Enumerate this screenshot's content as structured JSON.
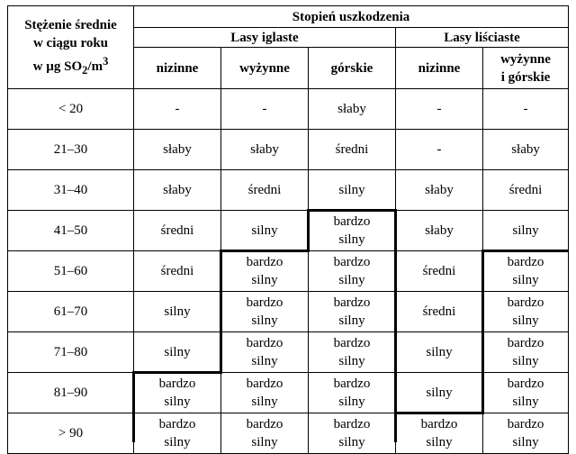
{
  "header": {
    "stub_lines": [
      "Stężenie średnie",
      "w ciągu roku",
      "w µg SO",
      "2",
      "/m",
      "3"
    ],
    "group_title": "Stopień uszkodzenia",
    "subgroups": [
      "Lasy iglaste",
      "Lasy liściaste"
    ],
    "columns": [
      "nizinne",
      "wyżynne",
      "górskie",
      "nizinne",
      [
        "wyżynne",
        "i górskie"
      ]
    ]
  },
  "rows": [
    {
      "range": "< 20",
      "cells": [
        "-",
        "-",
        "słaby",
        "-",
        "-"
      ]
    },
    {
      "range": "21–30",
      "cells": [
        "słaby",
        "słaby",
        "średni",
        "-",
        "słaby"
      ]
    },
    {
      "range": "31–40",
      "cells": [
        "słaby",
        "średni",
        "silny",
        "słaby",
        "średni"
      ]
    },
    {
      "range": "41–50",
      "cells": [
        "średni",
        "silny",
        [
          "bardzo",
          "silny"
        ],
        "słaby",
        "silny"
      ]
    },
    {
      "range": "51–60",
      "cells": [
        "średni",
        [
          "bardzo",
          "silny"
        ],
        [
          "bardzo",
          "silny"
        ],
        "średni",
        [
          "bardzo",
          "silny"
        ]
      ]
    },
    {
      "range": "61–70",
      "cells": [
        "silny",
        [
          "bardzo",
          "silny"
        ],
        [
          "bardzo",
          "silny"
        ],
        "średni",
        [
          "bardzo",
          "silny"
        ]
      ]
    },
    {
      "range": "71–80",
      "cells": [
        "silny",
        [
          "bardzo",
          "silny"
        ],
        [
          "bardzo",
          "silny"
        ],
        "silny",
        [
          "bardzo",
          "silny"
        ]
      ]
    },
    {
      "range": "81–90",
      "cells": [
        [
          "bardzo",
          "silny"
        ],
        [
          "bardzo",
          "silny"
        ],
        [
          "bardzo",
          "silny"
        ],
        "silny",
        [
          "bardzo",
          "silny"
        ]
      ]
    },
    {
      "range": "> 90",
      "cells": [
        [
          "bardzo",
          "silny"
        ],
        [
          "bardzo",
          "silny"
        ],
        [
          "bardzo",
          "silny"
        ],
        [
          "bardzo",
          "silny"
        ],
        [
          "bardzo",
          "silny"
        ]
      ]
    }
  ]
}
